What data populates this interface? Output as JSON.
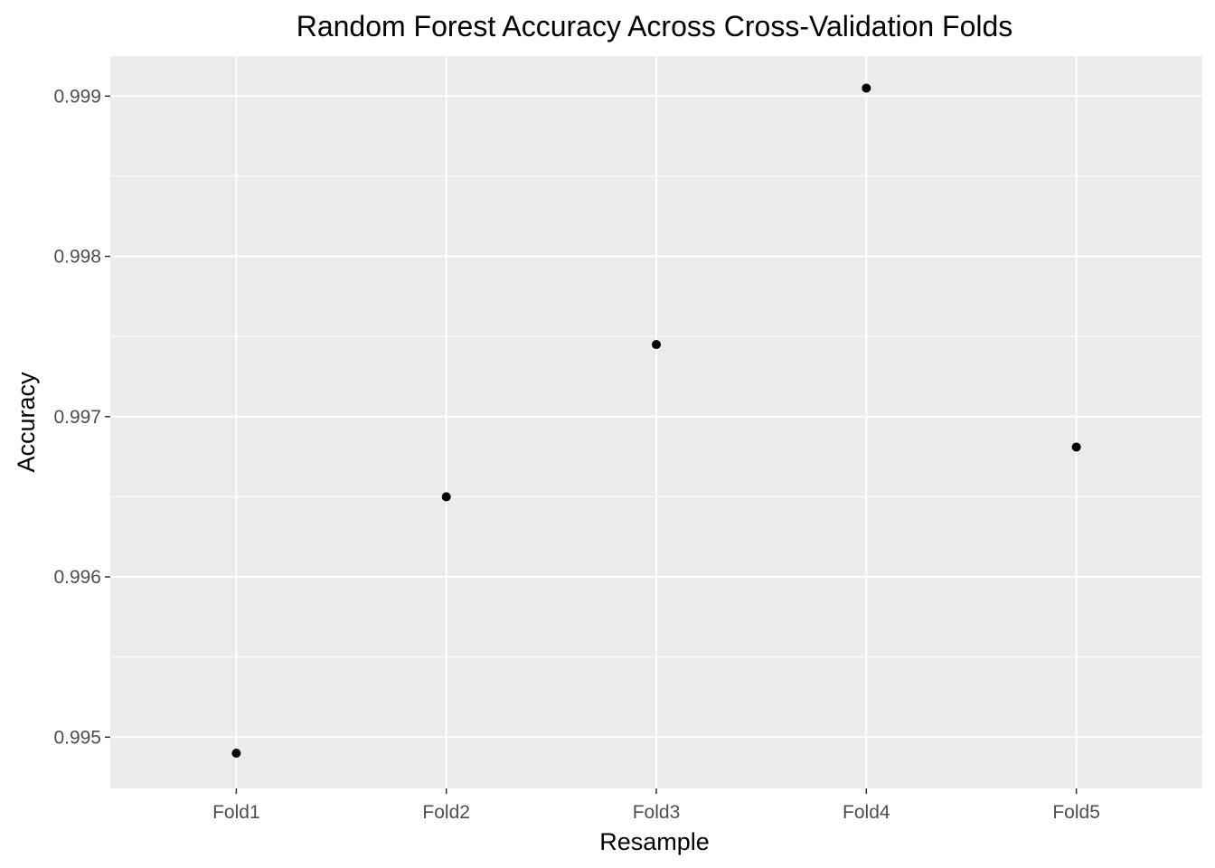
{
  "chart_data": {
    "type": "scatter",
    "title": "Random Forest Accuracy Across Cross-Validation Folds",
    "xlabel": "Resample",
    "ylabel": "Accuracy",
    "categories": [
      "Fold1",
      "Fold2",
      "Fold3",
      "Fold4",
      "Fold5"
    ],
    "values": [
      0.9949,
      0.9965,
      0.99745,
      0.99905,
      0.99681
    ],
    "yticks": [
      0.995,
      0.996,
      0.997,
      0.998,
      0.999
    ],
    "ytick_labels": [
      "0.995",
      "0.996",
      "0.997",
      "0.998",
      "0.999"
    ],
    "ylim": [
      0.99468,
      0.99925
    ],
    "grid": true,
    "colors": {
      "panel": "#ebebeb",
      "grid": "#ffffff",
      "point": "#000000",
      "tick_text": "#4d4d4d",
      "tick_mark": "#333333"
    }
  }
}
